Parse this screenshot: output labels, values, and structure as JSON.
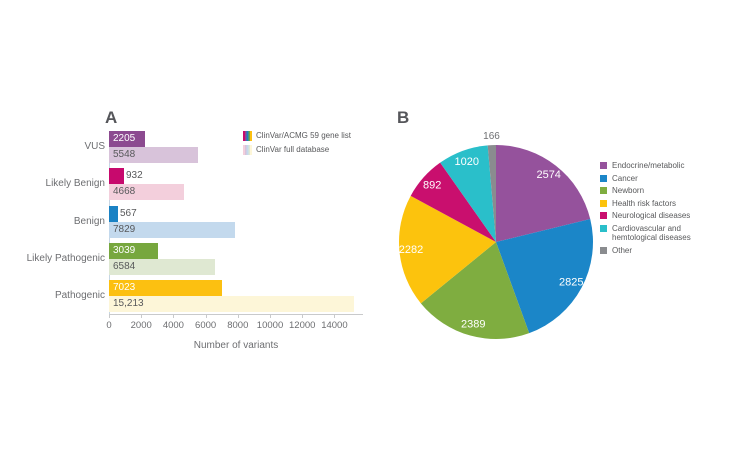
{
  "figure": {
    "panel_a": {
      "panel_label": "A",
      "legend": [
        {
          "label": "ClinVar/ACMG 59 gene list",
          "swatch_colors": [
            "#c7096d",
            "#8c4a90",
            "#1a82c4",
            "#77a73e",
            "#fcc011"
          ]
        },
        {
          "label": "ClinVar full database",
          "swatch_colors": [
            "#f3cfdc",
            "#d8c3da",
            "#c3d9ed",
            "#dfe8d2",
            "#fdf6d8"
          ]
        }
      ]
    },
    "panel_b": {
      "panel_label": "B",
      "legend": [
        {
          "label": "Endocrine/metabolic",
          "color": "#95529c"
        },
        {
          "label": "Cancer",
          "color": "#1b86c8"
        },
        {
          "label": "Newborn",
          "color": "#7fad40"
        },
        {
          "label": "Health risk factors",
          "color": "#fcc30d"
        },
        {
          "label": "Neurological diseases",
          "color": "#c90f6e"
        },
        {
          "label": "Cardiovascular and hemtological diseases",
          "color": "#2abfca"
        },
        {
          "label": "Other",
          "color": "#8a8c8f"
        }
      ]
    }
  },
  "chart_data": [
    {
      "type": "bar",
      "orientation": "horizontal",
      "panel": "A",
      "categories": [
        "VUS",
        "Likely Benign",
        "Benign",
        "Likely Pathogenic",
        "Pathogenic"
      ],
      "series": [
        {
          "name": "ClinVar/ACMG 59 gene list",
          "values": [
            2205,
            932,
            567,
            3039,
            7023
          ],
          "value_labels": [
            "2205",
            "932",
            "567",
            "3039",
            "7023"
          ],
          "colors": [
            "#8c4a90",
            "#c7096d",
            "#1a82c4",
            "#77a73e",
            "#fcc011"
          ]
        },
        {
          "name": "ClinVar full database",
          "values": [
            5548,
            4668,
            7829,
            6584,
            15213
          ],
          "value_labels": [
            "5548",
            "4668",
            "7829",
            "6584",
            "15,213"
          ],
          "colors": [
            "#d8c3da",
            "#f3cfdc",
            "#c3d9ed",
            "#dfe8d2",
            "#fdf6d8"
          ]
        }
      ],
      "xlabel": "Number of variants",
      "xlim": [
        0,
        15650
      ],
      "xticks": [
        0,
        2000,
        4000,
        6000,
        8000,
        10000,
        12000,
        14000
      ],
      "xtick_labels": [
        "0",
        "2000",
        "4000",
        "6000",
        "8000",
        "10000",
        "12000",
        "14000"
      ],
      "grid": false,
      "legend_position": "top-right"
    },
    {
      "type": "pie",
      "panel": "B",
      "labels": [
        "Endocrine/metabolic",
        "Cancer",
        "Newborn",
        "Health risk factors",
        "Neurological diseases",
        "Cardiovascular and hemtological diseases",
        "Other"
      ],
      "values": [
        2574,
        2825,
        2389,
        2282,
        892,
        1020,
        166
      ],
      "value_labels": [
        "2574",
        "2825",
        "2389",
        "2282",
        "892",
        "1020",
        "166"
      ],
      "colors": [
        "#95529c",
        "#1b86c8",
        "#7fad40",
        "#fcc30d",
        "#c90f6e",
        "#2abfca",
        "#8a8c8f"
      ],
      "start_angle_deg": -90,
      "direction": "clockwise",
      "legend_position": "right"
    }
  ],
  "colors": {
    "text_dark": "#58595b",
    "text_axis": "#6d6e71",
    "axis_line": "#c9cacb",
    "y_axis_line": "#c6d6e4",
    "background": "#ffffff"
  }
}
